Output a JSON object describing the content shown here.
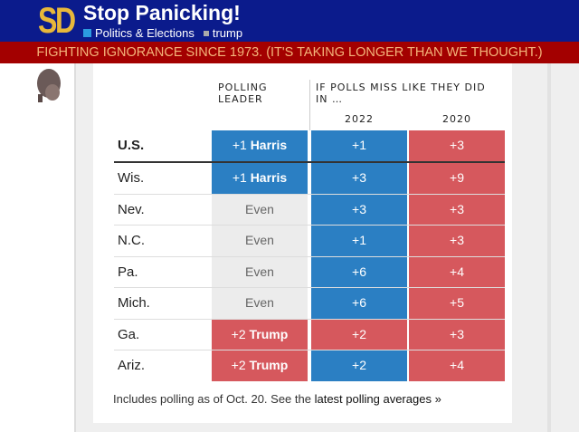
{
  "header": {
    "logo": "SD",
    "title": "Stop Panicking!",
    "crumb1": "Politics & Elections",
    "crumb2": "trump",
    "tagline": "FIGHTING IGNORANCE SINCE 1973. (IT'S TAKING LONGER THAN WE THOUGHT.)"
  },
  "table": {
    "col_leader": "POLLING LEADER",
    "col_group": "IF POLLS MISS LIKE THEY DID IN …",
    "col_2022": "2022",
    "col_2020": "2020",
    "rows": [
      {
        "state": "U.S.",
        "lead": "+1",
        "leader": "Harris",
        "leader_party": "blue",
        "y2022": "+1",
        "c2022": "blue",
        "y2020": "+3",
        "c2020": "red"
      },
      {
        "state": "Wis.",
        "lead": "+1",
        "leader": "Harris",
        "leader_party": "blue",
        "y2022": "+3",
        "c2022": "blue",
        "y2020": "+9",
        "c2020": "red"
      },
      {
        "state": "Nev.",
        "lead": "Even",
        "leader": "",
        "leader_party": "gray",
        "y2022": "+3",
        "c2022": "blue",
        "y2020": "+3",
        "c2020": "red"
      },
      {
        "state": "N.C.",
        "lead": "Even",
        "leader": "",
        "leader_party": "gray",
        "y2022": "+1",
        "c2022": "blue",
        "y2020": "+3",
        "c2020": "red"
      },
      {
        "state": "Pa.",
        "lead": "Even",
        "leader": "",
        "leader_party": "gray",
        "y2022": "+6",
        "c2022": "blue",
        "y2020": "+4",
        "c2020": "red"
      },
      {
        "state": "Mich.",
        "lead": "Even",
        "leader": "",
        "leader_party": "gray",
        "y2022": "+6",
        "c2022": "blue",
        "y2020": "+5",
        "c2020": "red"
      },
      {
        "state": "Ga.",
        "lead": "+2",
        "leader": "Trump",
        "leader_party": "red",
        "y2022": "+2",
        "c2022": "red",
        "y2020": "+3",
        "c2020": "red"
      },
      {
        "state": "Ariz.",
        "lead": "+2",
        "leader": "Trump",
        "leader_party": "red",
        "y2022": "+2",
        "c2022": "blue",
        "y2020": "+4",
        "c2020": "red"
      }
    ]
  },
  "footer": {
    "text": "Includes polling as of Oct. 20. See the ",
    "link": "latest polling averages »"
  },
  "colors": {
    "blue": "#2b7fc3",
    "red": "#d6585d",
    "gray": "#ececec",
    "header": "#0b1b8c",
    "band": "#a30000"
  }
}
